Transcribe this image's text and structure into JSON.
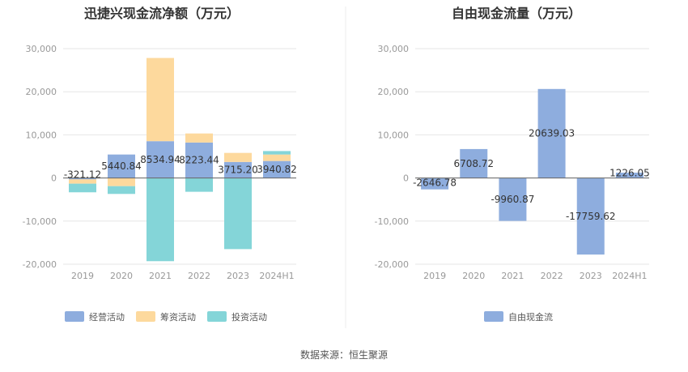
{
  "source_label": "数据来源：恒生聚源",
  "colors": {
    "operating": "#8eadde",
    "financing": "#fdd99d",
    "investing": "#84d5d8",
    "free_cash_flow": "#8eadde",
    "grid": "#e6e6e6",
    "divider": "#eeeeee"
  },
  "chart_data": [
    {
      "type": "bar",
      "stacked": true,
      "title": "迅捷兴现金流净额（万元）",
      "categories": [
        "2019",
        "2020",
        "2021",
        "2022",
        "2023",
        "2024H1"
      ],
      "y_ticks": [
        "30,000",
        "20,000",
        "10,000",
        "0",
        "-10,000",
        "-20,000"
      ],
      "ylim": [
        -20000,
        30000
      ],
      "grid": true,
      "legend_position": "bottom-left",
      "series": [
        {
          "name": "经营活动",
          "color_key": "operating",
          "values": [
            -321.12,
            5440.84,
            8534.94,
            8223.44,
            3715.2,
            3940.82
          ]
        },
        {
          "name": "筹资活动",
          "color_key": "financing",
          "values": [
            -1000,
            -1900,
            19300,
            2100,
            2100,
            1500
          ]
        },
        {
          "name": "投资活动",
          "color_key": "investing",
          "values": [
            -2000,
            -1800,
            -19300,
            -3200,
            -16500,
            800
          ]
        }
      ],
      "data_labels": [
        "-321.12",
        "5440.84",
        "8534.94",
        "8223.44",
        "3715.20",
        "3940.82"
      ]
    },
    {
      "type": "bar",
      "stacked": false,
      "title": "自由现金流量（万元）",
      "categories": [
        "2019",
        "2020",
        "2021",
        "2022",
        "2023",
        "2024H1"
      ],
      "y_ticks": [
        "30,000",
        "20,000",
        "10,000",
        "0",
        "-10,000",
        "-20,000"
      ],
      "ylim": [
        -20000,
        30000
      ],
      "grid": true,
      "legend_position": "bottom-center",
      "series": [
        {
          "name": "自由现金流",
          "color_key": "free_cash_flow",
          "values": [
            -2646.78,
            6708.72,
            -9960.87,
            20639.03,
            -17759.62,
            1226.05
          ]
        }
      ],
      "data_labels": [
        "-2646.78",
        "6708.72",
        "-9960.87",
        "20639.03",
        "-17759.62",
        "1226.05"
      ]
    }
  ]
}
